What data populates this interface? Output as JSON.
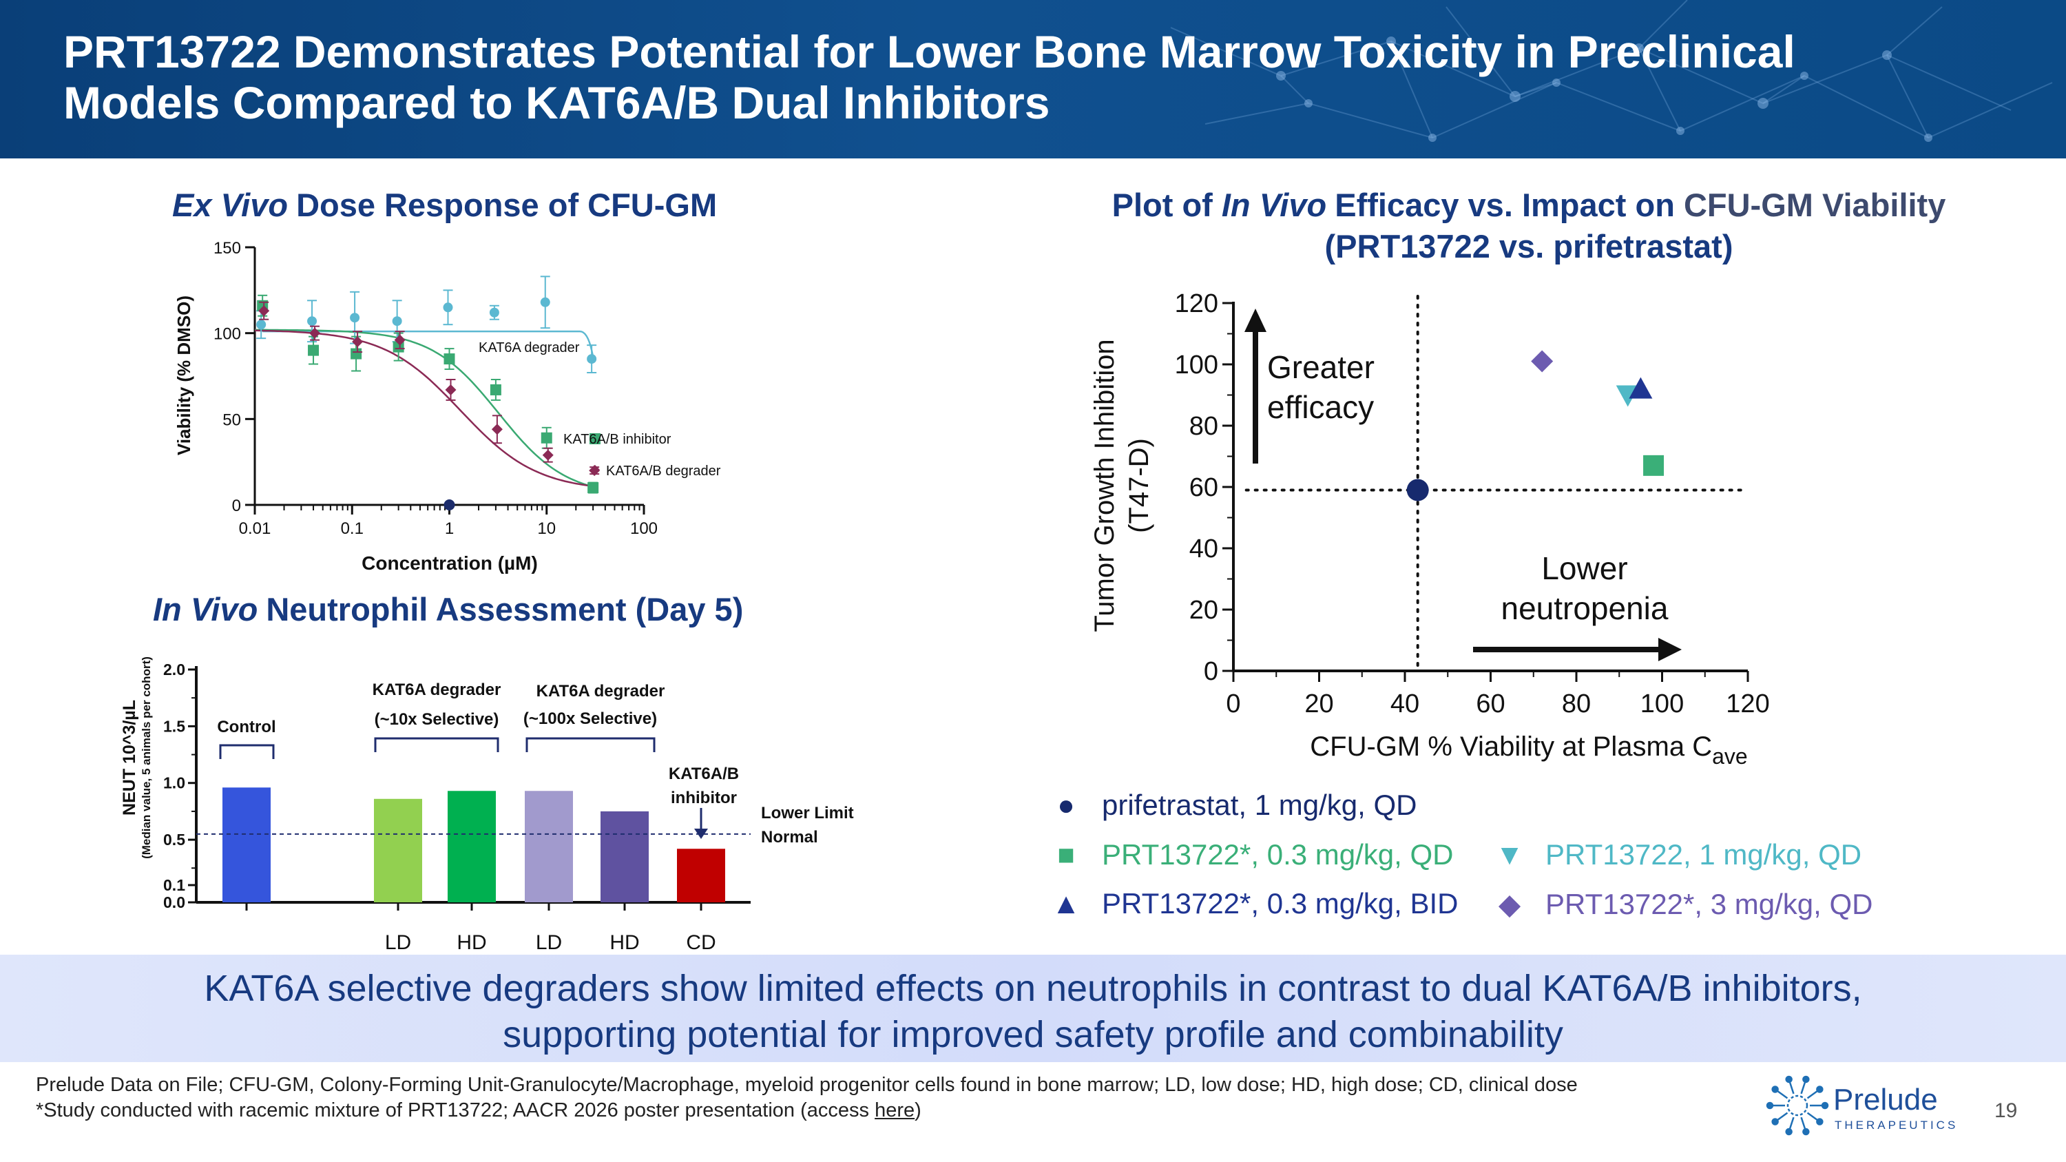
{
  "header": {
    "title_line1": "PRT13722 Demonstrates Potential for Lower Bone Marrow Toxicity in Preclinical",
    "title_line2": "Models Compared to KAT6A/B Dual Inhibitors"
  },
  "exvivo": {
    "title_italic": "Ex Vivo",
    "title_rest": "Dose Response of CFU-GM",
    "chart_data": {
      "type": "scatter",
      "title": "Ex Vivo Dose Response of CFU-GM",
      "xlabel": "Concentration (µM)",
      "ylabel": "Viability (% DMSO)",
      "x_scale": "log",
      "xlim": [
        0.01,
        100
      ],
      "ylim": [
        0,
        150
      ],
      "x_ticks": [
        "0.01",
        "0.1",
        "1",
        "10",
        "100"
      ],
      "y_ticks": [
        "0",
        "50",
        "100",
        "150"
      ],
      "series": [
        {
          "name": "KAT6A degrader",
          "color": "#5bb8d1",
          "x": [
            0.012,
            0.04,
            0.11,
            0.3,
            1.0,
            3.0,
            10.0,
            30.0
          ],
          "y": [
            105,
            107,
            109,
            107,
            115,
            112,
            118,
            85
          ],
          "err": [
            8,
            12,
            15,
            12,
            10,
            4,
            15,
            8
          ]
        },
        {
          "name": "KAT6A/B inhibitor",
          "color": "#3aa972",
          "x": [
            0.012,
            0.04,
            0.11,
            0.3,
            1.0,
            3.0,
            10.0,
            30.0
          ],
          "y": [
            116,
            90,
            88,
            92,
            85,
            67,
            39,
            10
          ],
          "err": [
            6,
            8,
            10,
            8,
            6,
            6,
            6,
            3
          ]
        },
        {
          "name": "KAT6A/B degrader",
          "color": "#8b2a55",
          "x": [
            0.012,
            0.04,
            0.11,
            0.3,
            1.0,
            3.0,
            10.0,
            30.0
          ],
          "y": [
            113,
            100,
            95,
            96,
            67,
            44,
            29,
            20
          ],
          "err": [
            5,
            4,
            6,
            5,
            6,
            8,
            4,
            2
          ]
        }
      ],
      "extra_point": {
        "x": 1.0,
        "y": 0,
        "color": "#1c2c6b"
      }
    }
  },
  "invivo": {
    "title_italic": "In Vivo",
    "title_rest": "Neutrophil Assessment (Day 5)",
    "chart_data": {
      "type": "bar",
      "title": "In Vivo Neutrophil Assessment (Day 5)",
      "ylabel": "NEUT 10^3/µL",
      "ylabel2": "(Median value, 5 animals per cohort)",
      "y_ticks": [
        "0.0",
        "0.1",
        "0.5",
        "1.0",
        "1.5",
        "2.0"
      ],
      "ylim": [
        0,
        2.0
      ],
      "categories": [
        "",
        "LD",
        "HD",
        "LD",
        "HD",
        "CD"
      ],
      "values": [
        0.96,
        0.86,
        0.93,
        0.93,
        0.75,
        0.42
      ],
      "colors": [
        "#3555dc",
        "#92d050",
        "#00b050",
        "#a19acd",
        "#5f52a0",
        "#c00000"
      ],
      "lower_limit": 0.55,
      "lower_limit_label": [
        "Lower Limit",
        "Normal"
      ],
      "group_labels": [
        {
          "lines": [
            "Control"
          ]
        },
        {
          "lines": [
            "KAT6A degrader",
            "(~10x Selective)"
          ]
        },
        {
          "lines": [
            "KAT6A degrader",
            "(~100x Selective)"
          ]
        },
        {
          "lines": [
            "KAT6A/B",
            "inhibitor"
          ]
        }
      ]
    }
  },
  "efficacy": {
    "title_pre": "Plot of",
    "title_italic": "In Vivo",
    "title_mid": "Efficacy vs. Impact on",
    "title_highlight": "CFU-GM Viability",
    "title_line2": "(PRT13722 vs. prifetrastat)",
    "chart_data": {
      "type": "scatter",
      "xlabel": "CFU-GM % Viability at Plasma C",
      "xlabel_sub": "ave",
      "ylabel": "Tumor Growth Inhibition",
      "ylabel2": "(T47-D)",
      "xlim": [
        0,
        120
      ],
      "ylim": [
        0,
        120
      ],
      "x_ticks": [
        "0",
        "20",
        "40",
        "60",
        "80",
        "100",
        "120"
      ],
      "y_ticks": [
        "0",
        "20",
        "40",
        "60",
        "80",
        "100",
        "120"
      ],
      "ref_x": 43,
      "ref_y": 59,
      "annotation_up": [
        "Greater",
        "efficacy"
      ],
      "annotation_right": [
        "Lower",
        "neutropenia"
      ],
      "points": [
        {
          "name": "prifetrastat, 1 mg/kg, QD",
          "x": 43,
          "y": 59,
          "marker": "circle",
          "color": "#172a6e"
        },
        {
          "name": "PRT13722*, 0.3 mg/kg, QD",
          "x": 98,
          "y": 67,
          "marker": "square",
          "color": "#3aaf78"
        },
        {
          "name": "PRT13722, 1 mg/kg, QD",
          "x": 92,
          "y": 90,
          "marker": "triangle-down",
          "color": "#4fb8c6"
        },
        {
          "name": "PRT13722*, 0.3 mg/kg, BID",
          "x": 95,
          "y": 92,
          "marker": "triangle-up",
          "color": "#1f3592"
        },
        {
          "name": "PRT13722*, 3 mg/kg, QD",
          "x": 72,
          "y": 101,
          "marker": "diamond",
          "color": "#6c5bb0"
        }
      ]
    }
  },
  "legend": {
    "items": [
      {
        "label": "prifetrastat, 1 mg/kg, QD",
        "symbol": "●",
        "color": "#172a6e"
      },
      {
        "label": "PRT13722*, 0.3 mg/kg, QD",
        "symbol": "■",
        "color": "#3aaf78"
      },
      {
        "label": "PRT13722, 1 mg/kg, QD",
        "symbol": "▼",
        "color": "#4fb8c6"
      },
      {
        "label": "PRT13722*, 0.3 mg/kg, BID",
        "symbol": "▲",
        "color": "#1f3592"
      },
      {
        "label": "PRT13722*, 3 mg/kg, QD",
        "symbol": "◆",
        "color": "#6c5bb0"
      }
    ]
  },
  "takeaway": {
    "line1": "KAT6A selective degraders show limited effects on neutrophils in contrast to dual KAT6A/B inhibitors,",
    "line2": "supporting potential for improved safety profile and combinability"
  },
  "footer": {
    "line1": "Prelude Data on File; CFU-GM, Colony-Forming Unit-Granulocyte/Macrophage, myeloid progenitor cells found in bone marrow; LD, low dose; HD, high dose; CD, clinical dose",
    "line2_pre": "*Study conducted with racemic mixture of PRT13722; AACR 2026 poster presentation (access ",
    "line2_link": "here",
    "line2_post": ")",
    "logo_name": "Prelude",
    "logo_sub": "THERAPEUTICS",
    "page_number": "19"
  },
  "colors": {
    "banner": "#0b4a86",
    "title_text": "#173a80",
    "highlight": "#3d4a6e",
    "band": "#d9e1fa"
  }
}
